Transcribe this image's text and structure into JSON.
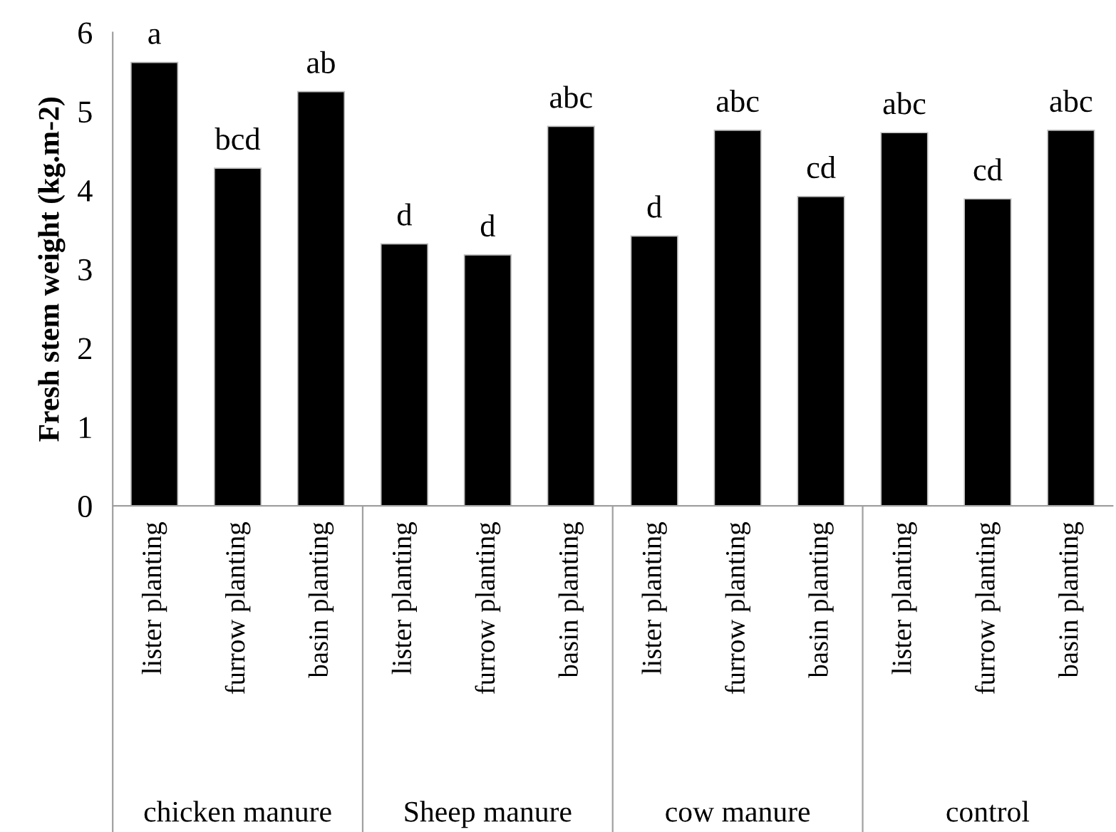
{
  "chart_data": {
    "type": "bar",
    "ylabel": "Fresh stem weight (kg.m-2)",
    "categories": [
      "lister planting",
      "furrow planting",
      "basin planting",
      "lister planting",
      "furrow planting",
      "basin planting",
      "lister planting",
      "furrow planting",
      "basin planting",
      "lister planting",
      "furrow planting",
      "basin planting"
    ],
    "values": [
      5.62,
      4.28,
      5.25,
      3.32,
      3.18,
      4.81,
      3.42,
      4.76,
      3.92,
      4.73,
      3.89,
      4.76
    ],
    "value_labels": [
      "a",
      "bcd",
      "ab",
      "d",
      "d",
      "abc",
      "d",
      "abc",
      "cd",
      "abc",
      "cd",
      "abc"
    ],
    "color": "#000000",
    "annotations": [
      "chicken manure",
      "Sheep manure",
      "cow manure",
      "control"
    ],
    "ylim": [
      0,
      6
    ],
    "yticks": [
      0,
      1,
      2,
      3,
      4,
      5,
      6
    ],
    "grid": false
  }
}
